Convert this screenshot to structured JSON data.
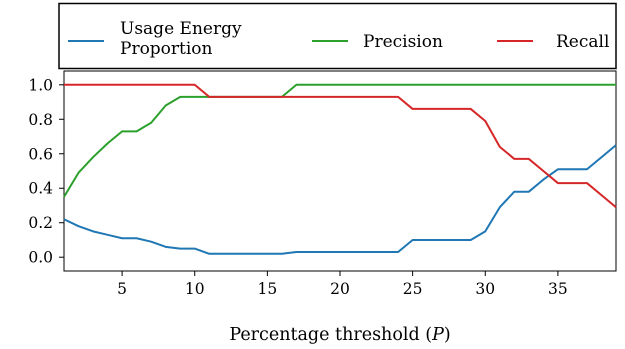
{
  "chart_data": {
    "type": "line",
    "xlabel": "Percentage threshold",
    "xlabel_symbol": "P",
    "xlim": [
      1,
      39
    ],
    "ylim": [
      -0.08,
      1.08
    ],
    "xticks": [
      5,
      10,
      15,
      20,
      25,
      30,
      35
    ],
    "yticks": [
      0.0,
      0.2,
      0.4,
      0.6,
      0.8,
      1.0
    ],
    "xtick_labels": [
      "5",
      "10",
      "15",
      "20",
      "25",
      "30",
      "35"
    ],
    "ytick_labels": [
      "0.0",
      "0.2",
      "0.4",
      "0.6",
      "0.8",
      "1.0"
    ],
    "grid": false,
    "legend_position": "top, above plot",
    "x": [
      1,
      2,
      3,
      4,
      5,
      6,
      7,
      8,
      9,
      10,
      11,
      12,
      13,
      14,
      15,
      16,
      17,
      18,
      19,
      20,
      21,
      22,
      23,
      24,
      25,
      26,
      27,
      28,
      29,
      30,
      31,
      32,
      33,
      34,
      35,
      36,
      37,
      38,
      39
    ],
    "series": [
      {
        "name": "Usage Energy Proportion",
        "legend_lines": [
          "Usage Energy",
          "Proportion"
        ],
        "color": "#1f77b4",
        "values": [
          0.22,
          0.18,
          0.15,
          0.13,
          0.11,
          0.11,
          0.09,
          0.06,
          0.05,
          0.05,
          0.02,
          0.02,
          0.02,
          0.02,
          0.02,
          0.02,
          0.03,
          0.03,
          0.03,
          0.03,
          0.03,
          0.03,
          0.03,
          0.03,
          0.1,
          0.1,
          0.1,
          0.1,
          0.1,
          0.15,
          0.29,
          0.38,
          0.38,
          0.45,
          0.51,
          0.51,
          0.51,
          0.58,
          0.65
        ]
      },
      {
        "name": "Precision",
        "legend_lines": [
          "Precision"
        ],
        "color": "#2ca02c",
        "values": [
          0.35,
          0.49,
          0.58,
          0.66,
          0.73,
          0.73,
          0.78,
          0.88,
          0.93,
          0.93,
          0.93,
          0.93,
          0.93,
          0.93,
          0.93,
          0.93,
          1.0,
          1.0,
          1.0,
          1.0,
          1.0,
          1.0,
          1.0,
          1.0,
          1.0,
          1.0,
          1.0,
          1.0,
          1.0,
          1.0,
          1.0,
          1.0,
          1.0,
          1.0,
          1.0,
          1.0,
          1.0,
          1.0,
          1.0
        ]
      },
      {
        "name": "Recall",
        "legend_lines": [
          "Recall"
        ],
        "color": "#d62728",
        "values": [
          1.0,
          1.0,
          1.0,
          1.0,
          1.0,
          1.0,
          1.0,
          1.0,
          1.0,
          1.0,
          0.93,
          0.93,
          0.93,
          0.93,
          0.93,
          0.93,
          0.93,
          0.93,
          0.93,
          0.93,
          0.93,
          0.93,
          0.93,
          0.93,
          0.86,
          0.86,
          0.86,
          0.86,
          0.86,
          0.79,
          0.64,
          0.57,
          0.57,
          0.5,
          0.43,
          0.43,
          0.43,
          0.36,
          0.29
        ]
      }
    ]
  }
}
